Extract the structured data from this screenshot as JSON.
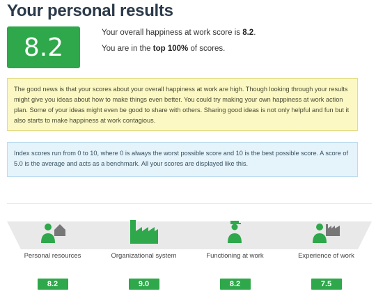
{
  "page": {
    "title": "Your personal results"
  },
  "score": {
    "value": "8.2",
    "line1_prefix": "Your overall happiness at work score is ",
    "line1_value": "8.2",
    "line1_suffix": ".",
    "line2_prefix": "You are in the ",
    "line2_value": "top 100%",
    "line2_suffix": " of scores."
  },
  "notes": {
    "good_news": "The good news is that your scores about your overall happiness at work are high. Though looking through your results might give you ideas about how to make things even better. You could try making your own happiness at work action plan. Some of your ideas might even be good to share with others. Sharing good ideas is not only helpful and fun but it also starts to make happiness at work contagious.",
    "index_info": "Index scores run from 0 to 10, where 0 is always the worst possible score and 10 is the best possible score. A score of 5.0 is the average and acts as a benchmark. All your scores are displayed like this."
  },
  "colors": {
    "accent": "#2ea84a",
    "icon_gray": "#777777",
    "band": "#e9e9e9"
  },
  "categories": [
    {
      "label": "Personal resources",
      "score": "8.2",
      "icon": "person-house-icon"
    },
    {
      "label": "Organizational system",
      "score": "9.0",
      "icon": "factory-icon"
    },
    {
      "label": "Functioning at work",
      "score": "8.2",
      "icon": "person-cap-icon"
    },
    {
      "label": "Experience of work",
      "score": "7.5",
      "icon": "person-factory-icon"
    }
  ]
}
